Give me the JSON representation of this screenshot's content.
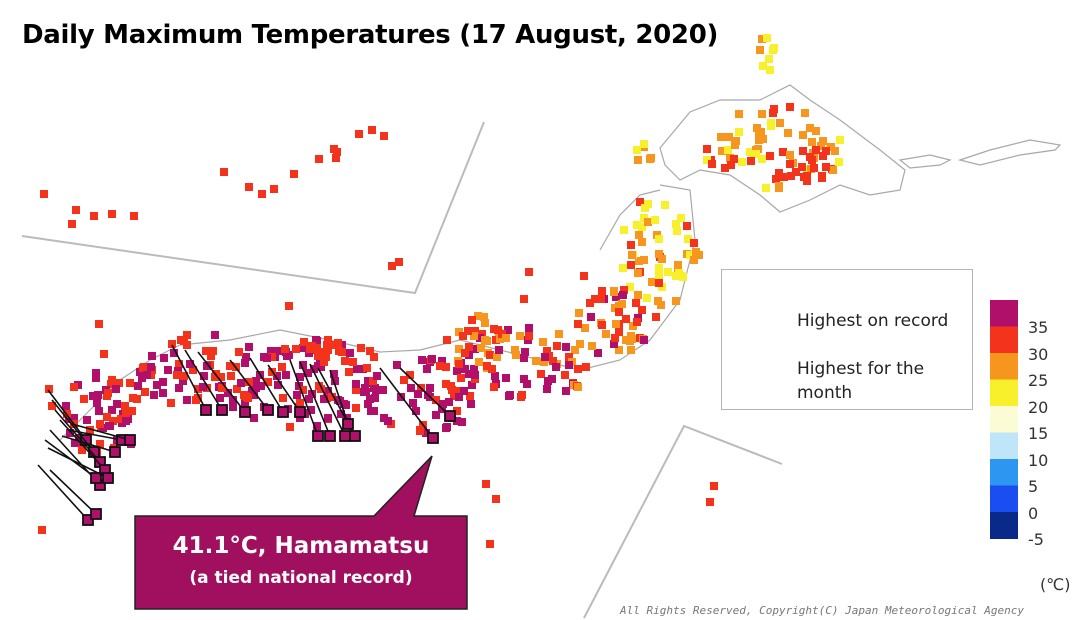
{
  "title": "Daily Maximum Temperatures (17 August, 2020)",
  "legend": {
    "record_label": "Highest on record",
    "month_label": "Highest for the month"
  },
  "callout": {
    "main": "41.1°C, Hamamatsu",
    "sub": "(a tied national record)"
  },
  "color_scale": {
    "unit": "(℃)",
    "labels": [
      "35",
      "30",
      "25",
      "20",
      "15",
      "10",
      "5",
      "0",
      "-5"
    ],
    "colors": [
      "#b0106a",
      "#f4331c",
      "#f7961f",
      "#f7f02a",
      "#fbfbd6",
      "#bfe6f8",
      "#2c96f0",
      "#1a4ef0",
      "#0a2a8a"
    ]
  },
  "category_colors": {
    "35+": "#b0106a",
    "30-35": "#f4331c",
    "25-30": "#f7961f",
    "20-25": "#f7f02a"
  },
  "copyright": "All Rights Reserved, Copyright(C) Japan Meteorological Agency"
}
